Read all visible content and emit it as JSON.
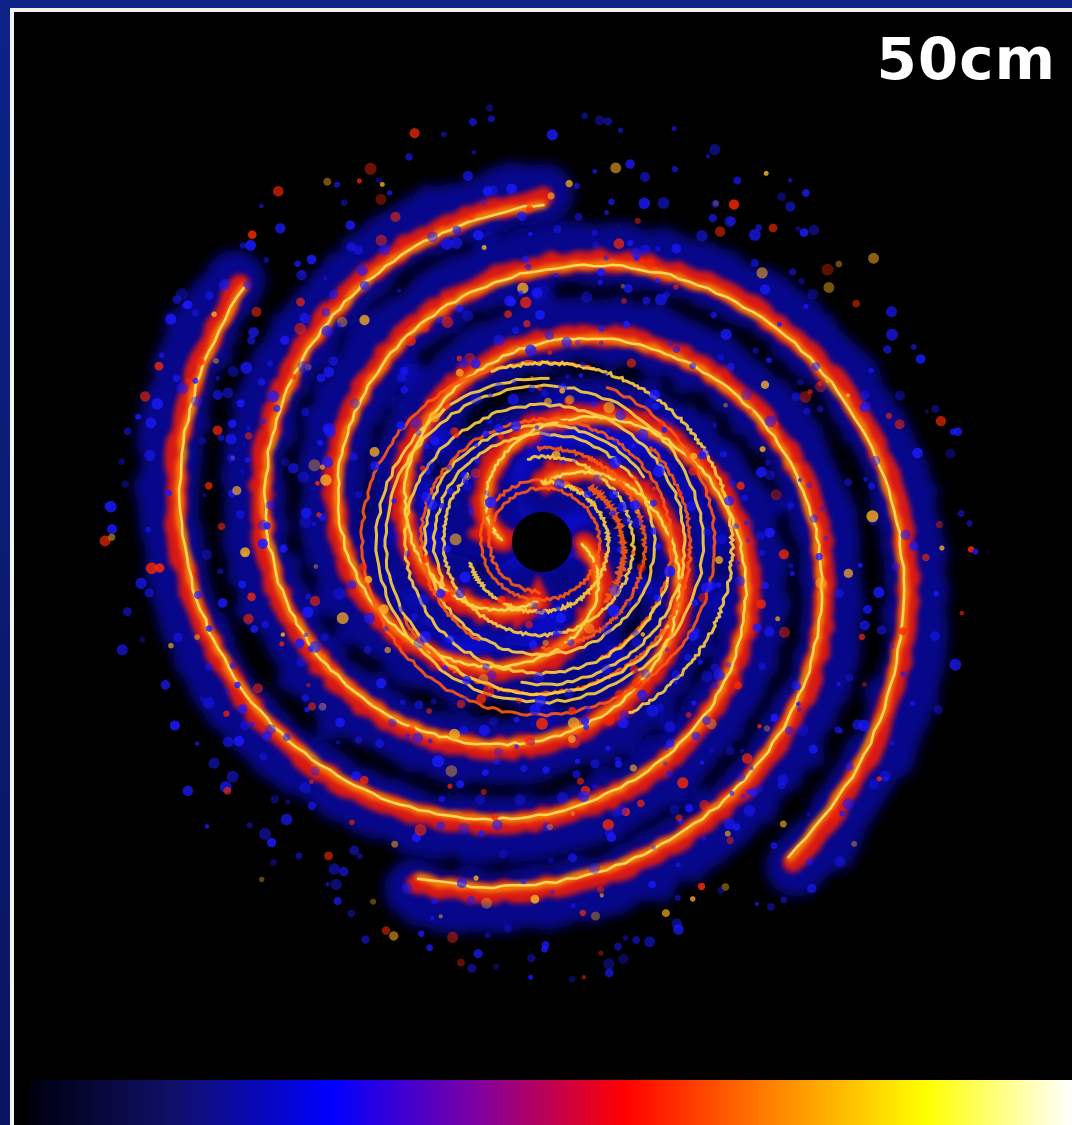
{
  "scale_label": "50cm",
  "colormap": {
    "name": "heat",
    "stops": [
      "#000010",
      "#10106a",
      "#0000ff",
      "#8000a0",
      "#ff0000",
      "#ff8000",
      "#ffff00",
      "#ffffff"
    ]
  },
  "background_color": "#000000",
  "frame_color": "#0a1a6e",
  "border_color": "#f2f2f2"
}
